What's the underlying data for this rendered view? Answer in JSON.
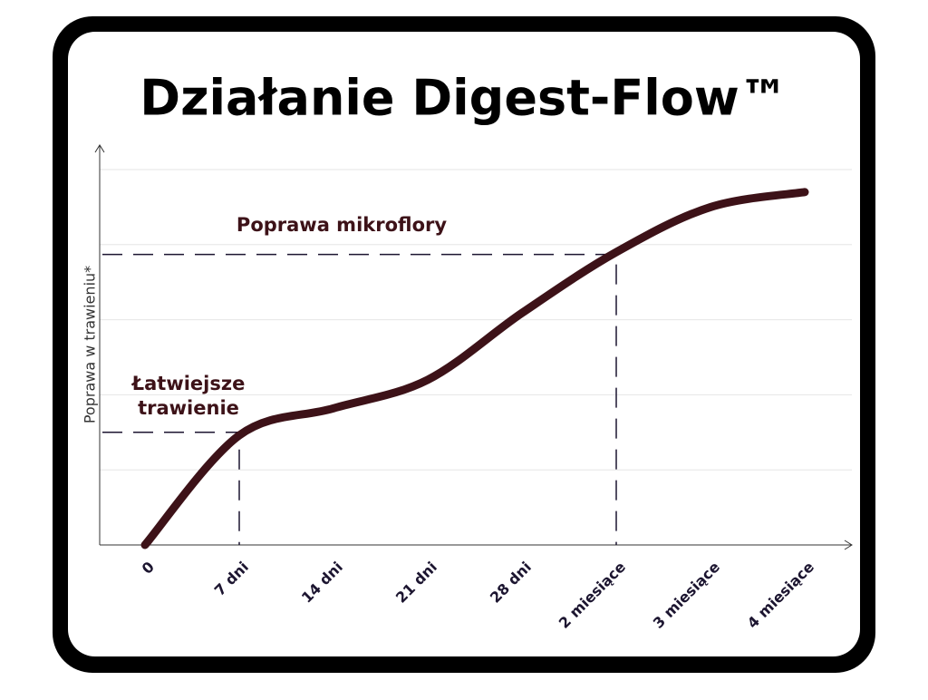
{
  "chart_data": {
    "type": "line",
    "title": "Działanie Digest-Flow™",
    "y_label": "Poprawa w trawieniu*",
    "categories": [
      "0",
      "7 dni",
      "14 dni",
      "21 dni",
      "28 dni",
      "2 miesiące",
      "3 miesiące",
      "4 miesiące"
    ],
    "values": [
      0,
      1.46,
      1.82,
      2.2,
      3.09,
      3.9,
      4.5,
      4.7
    ],
    "color": "#3d1218",
    "ylim": [
      0,
      5
    ],
    "yticks": [
      1,
      2,
      3,
      4,
      5
    ],
    "grid": true,
    "annotations": [
      {
        "lines": [
          "Łatwiejsze",
          "trawienie"
        ],
        "category": "7 dni",
        "value": 1.5
      },
      {
        "lines": [
          "Poprawa mikroflory"
        ],
        "category": "2 miesiące",
        "value": 3.87
      }
    ]
  }
}
